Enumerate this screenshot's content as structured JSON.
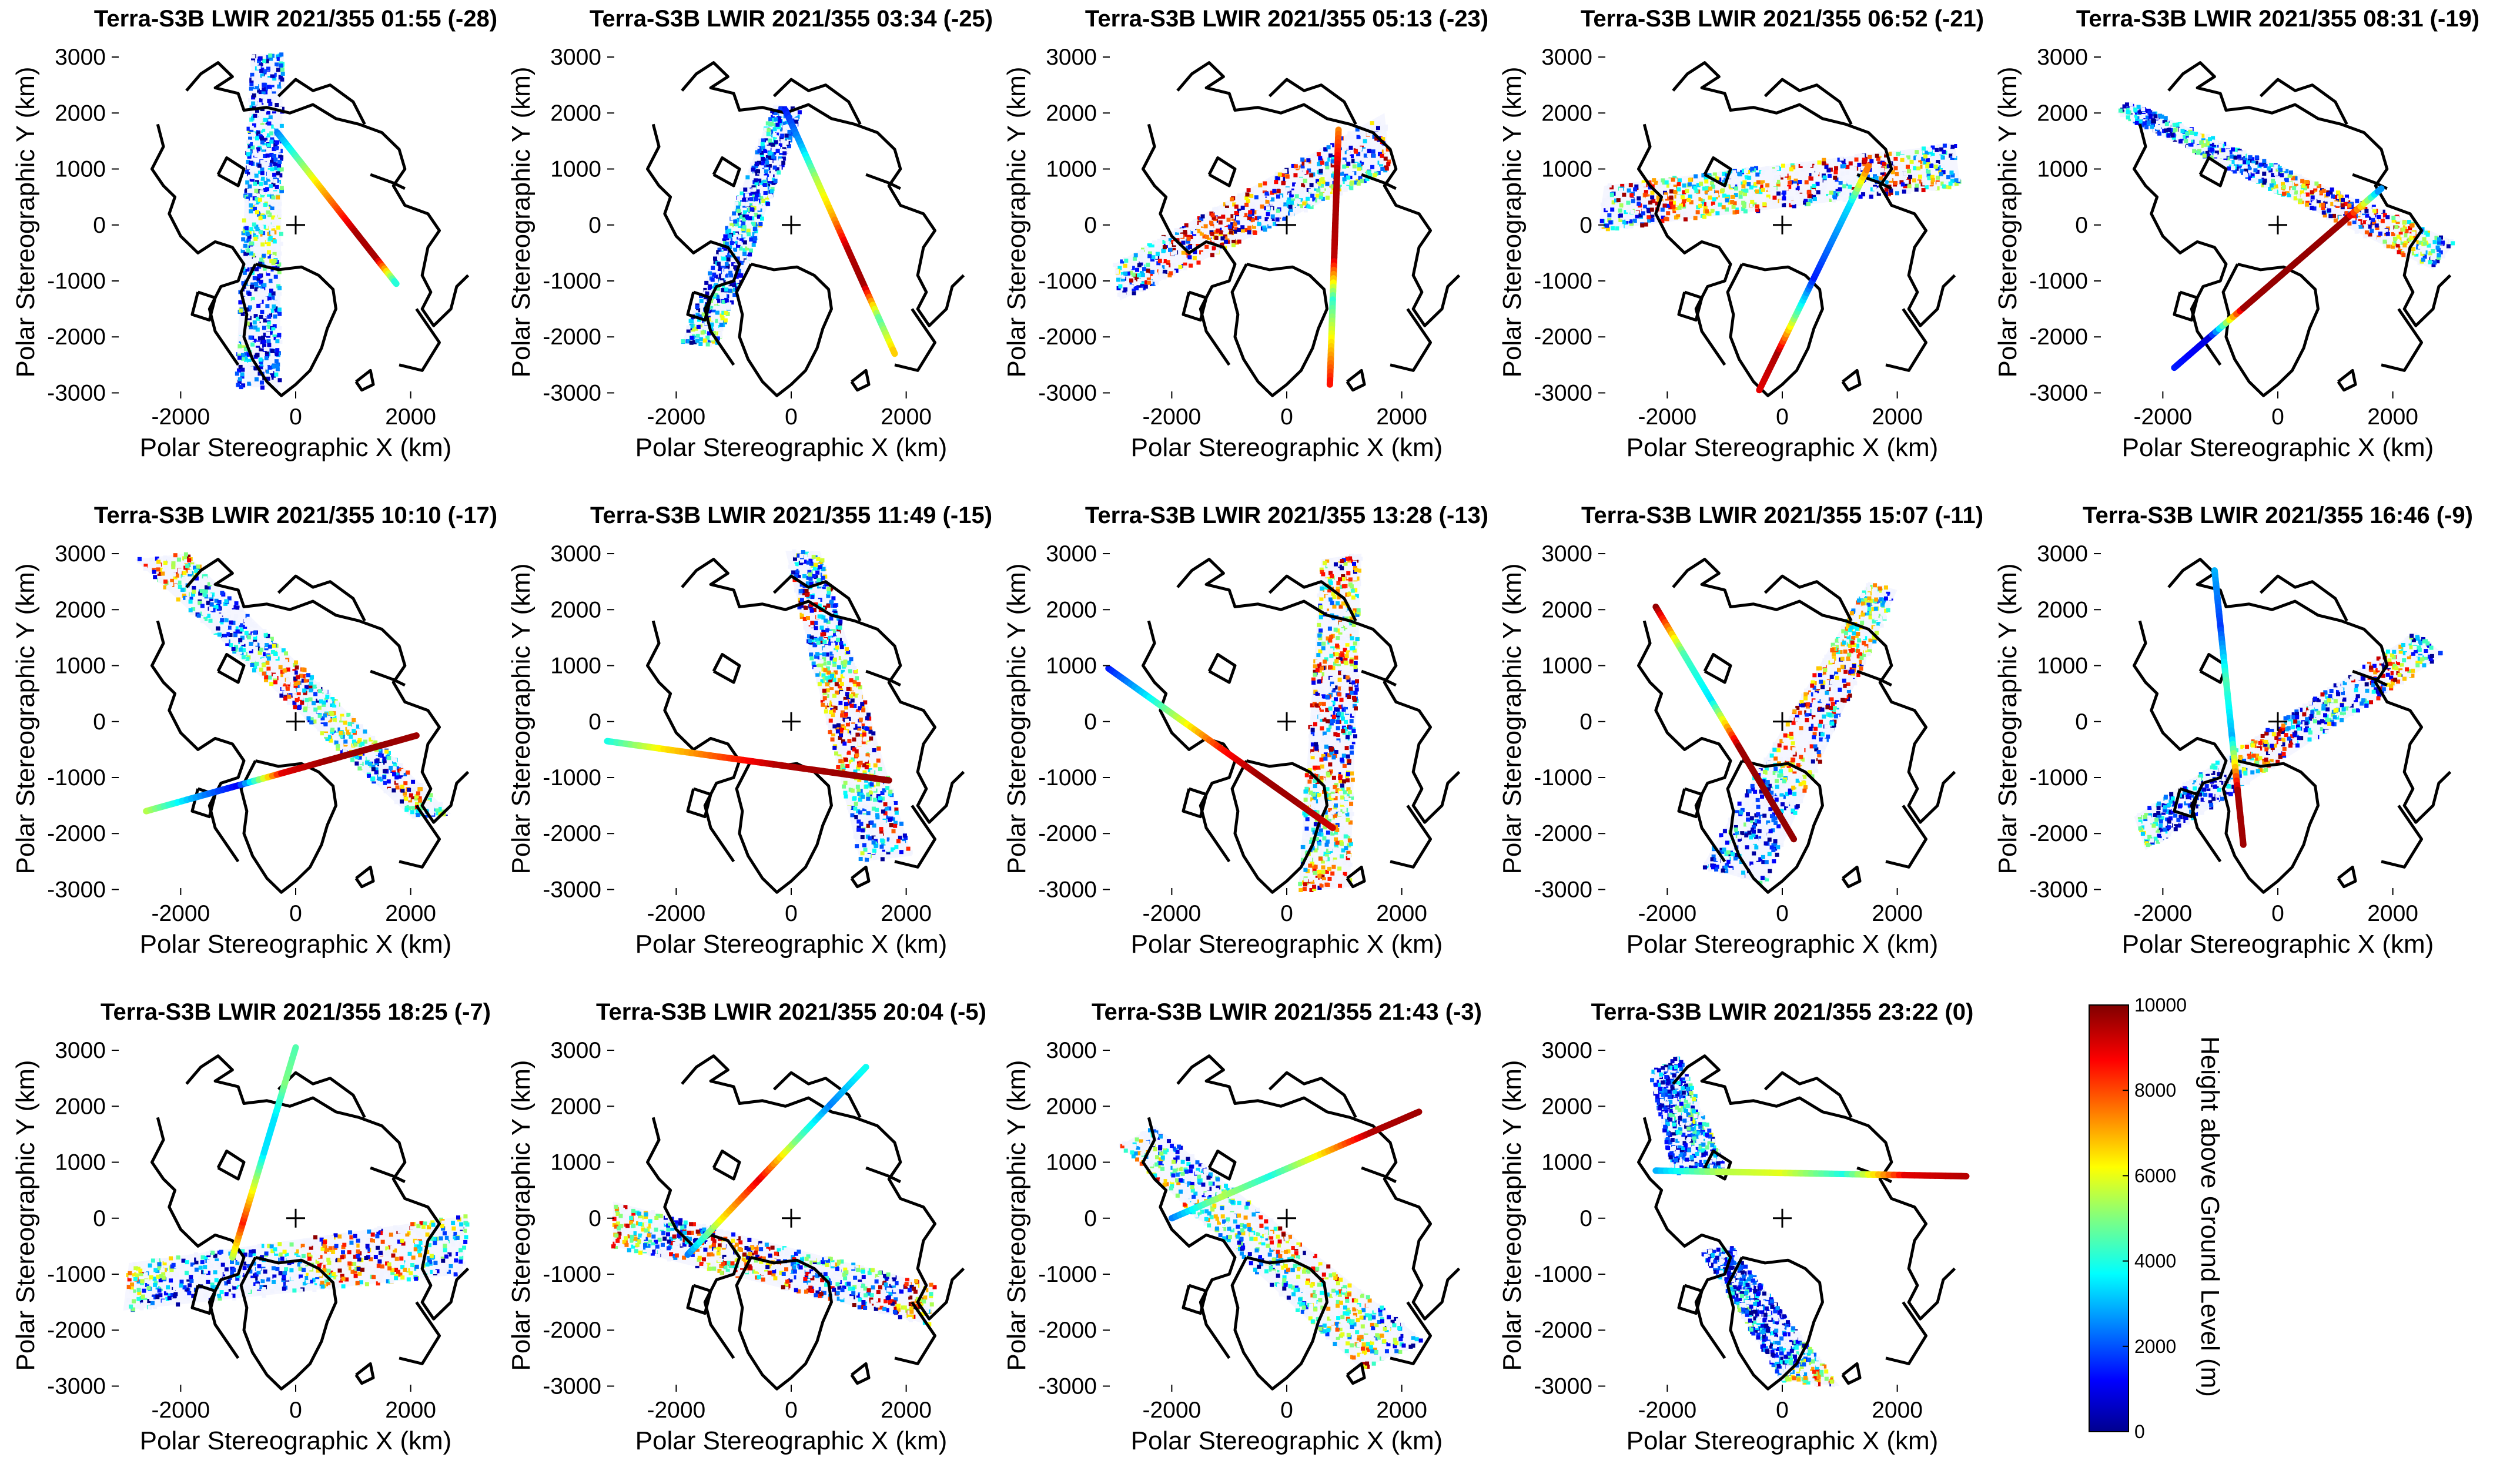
{
  "chart_data": {
    "type": "scatter",
    "xlabel": "Polar Stereographic X (km)",
    "ylabel": "Polar Stereographic Y (km)",
    "xticks": [
      -2000,
      0,
      2000
    ],
    "yticks": [
      3000,
      2000,
      1000,
      0,
      -1000,
      -2000,
      -3000
    ],
    "xlim": [
      -3200,
      3200
    ],
    "ylim": [
      -3100,
      3200
    ],
    "colorbar": {
      "label": "Height above Ground Level (m)",
      "min": 0,
      "max": 10000,
      "ticks": [
        10000,
        8000,
        6000,
        4000,
        2000,
        0
      ],
      "colormap": "jet"
    },
    "panels": [
      {
        "title": "Terra-S3B LWIR 2021/355 01:55 (-28)",
        "swath": [
          [
            -760,
            3050
          ],
          [
            -220,
            3050
          ],
          [
            -280,
            -2900
          ],
          [
            -1050,
            -2900
          ]
        ],
        "track": [
          [
            -320,
            1650
          ],
          [
            1750,
            -1050
          ]
        ],
        "trackValues": [
          2500,
          4500,
          6500,
          8000,
          9600,
          9600,
          3500
        ]
      },
      {
        "title": "Terra-S3B LWIR 2021/355 03:34 (-25)",
        "swath": [
          [
            -300,
            2150
          ],
          [
            200,
            2050
          ],
          [
            -1300,
            -2150
          ],
          [
            -1900,
            -2100
          ]
        ],
        "track": [
          [
            -100,
            2050
          ],
          [
            1800,
            -2300
          ]
        ],
        "trackValues": [
          1500,
          3000,
          5500,
          7000,
          9500,
          9700,
          4500,
          7000
        ]
      },
      {
        "title": "Terra-S3B LWIR 2021/355 05:13 (-23)",
        "swath": [
          [
            -3000,
            -700
          ],
          [
            1700,
            2000
          ],
          [
            1800,
            1000
          ],
          [
            -2900,
            -1350
          ]
        ],
        "track": [
          [
            900,
            1700
          ],
          [
            750,
            -2850
          ]
        ],
        "trackValues": [
          7500,
          9500,
          9600,
          9400,
          4200,
          6500,
          8800
        ]
      },
      {
        "title": "Terra-S3B LWIR 2021/355 06:52 (-21)",
        "swath": [
          [
            -3100,
            700
          ],
          [
            3000,
            1450
          ],
          [
            3100,
            700
          ],
          [
            -3200,
            -100
          ]
        ],
        "track": [
          [
            -400,
            -2950
          ],
          [
            1500,
            1050
          ]
        ],
        "trackValues": [
          9000,
          9600,
          4800,
          1500,
          2500,
          3500,
          8000
        ]
      },
      {
        "title": "Terra-S3B LWIR 2021/355 08:31 (-19)",
        "swath": [
          [
            -2800,
            2000
          ],
          [
            -2600,
            2200
          ],
          [
            3100,
            -300
          ],
          [
            2700,
            -800
          ]
        ],
        "track": [
          [
            -1800,
            -2550
          ],
          [
            1800,
            650
          ]
        ],
        "trackValues": [
          1500,
          900,
          9700,
          9800,
          9800,
          9700,
          2000
        ]
      },
      {
        "title": "Terra-S3B LWIR 2021/355 10:10 (-17)",
        "swath": [
          [
            -2800,
            2900
          ],
          [
            -1900,
            3000
          ],
          [
            2700,
            -1650
          ],
          [
            2000,
            -1700
          ]
        ],
        "track": [
          [
            -2600,
            -1600
          ],
          [
            2100,
            -250
          ]
        ],
        "trackValues": [
          5500,
          3000,
          1200,
          9000,
          9700,
          9800,
          9700
        ]
      },
      {
        "title": "Terra-S3B LWIR 2021/355 11:49 (-15)",
        "swath": [
          [
            -100,
            3050
          ],
          [
            500,
            3050
          ],
          [
            2100,
            -2400
          ],
          [
            1200,
            -2500
          ]
        ],
        "track": [
          [
            -3200,
            -350
          ],
          [
            1700,
            -1050
          ]
        ],
        "trackValues": [
          4000,
          6500,
          8000,
          9500,
          9700,
          9800
        ]
      },
      {
        "title": "Terra-S3B LWIR 2021/355 13:28 (-13)",
        "swath": [
          [
            600,
            2900
          ],
          [
            1300,
            3000
          ],
          [
            1100,
            -2950
          ],
          [
            200,
            -3050
          ]
        ],
        "track": [
          [
            -3100,
            950
          ],
          [
            800,
            -1900
          ]
        ],
        "trackValues": [
          1500,
          3500,
          6000,
          8500,
          9700,
          9700,
          9200
        ]
      },
      {
        "title": "Terra-S3B LWIR 2021/355 15:07 (-11)",
        "swath": [
          [
            1500,
            2500
          ],
          [
            2000,
            2350
          ],
          [
            -300,
            -2900
          ],
          [
            -1400,
            -2600
          ]
        ],
        "track": [
          [
            -2200,
            2050
          ],
          [
            200,
            -2100
          ]
        ],
        "trackValues": [
          9800,
          4500,
          3500,
          9700,
          9800,
          9800
        ]
      },
      {
        "title": "Terra-S3B LWIR 2021/355 16:46 (-9)",
        "swath": [
          [
            2400,
            1600
          ],
          [
            2900,
            1200
          ],
          [
            -2300,
            -2300
          ],
          [
            -2500,
            -1700
          ]
        ],
        "track": [
          [
            -1100,
            2700
          ],
          [
            -600,
            -2200
          ]
        ],
        "trackValues": [
          3000,
          1800,
          4500,
          3000,
          9600,
          9700
        ]
      },
      {
        "title": "Terra-S3B LWIR 2021/355 18:25 (-7)",
        "swath": [
          [
            -2900,
            -800
          ],
          [
            3000,
            50
          ],
          [
            2900,
            -1000
          ],
          [
            -3000,
            -1650
          ]
        ],
        "track": [
          [
            -1100,
            -700
          ],
          [
            0,
            3050
          ]
        ],
        "trackValues": [
          5500,
          8500,
          6000,
          3500,
          3500,
          5000,
          4500
        ]
      },
      {
        "title": "Terra-S3B LWIR 2021/355 20:04 (-5)",
        "swath": [
          [
            -3100,
            300
          ],
          [
            2500,
            -1200
          ],
          [
            2400,
            -1900
          ],
          [
            -3100,
            -500
          ]
        ],
        "track": [
          [
            -1800,
            -650
          ],
          [
            1300,
            2700
          ]
        ],
        "trackValues": [
          2500,
          6500,
          9000,
          5000,
          2500,
          4000
        ]
      },
      {
        "title": "Terra-S3B LWIR 2021/355 21:43 (-3)",
        "swath": [
          [
            -2900,
            1300
          ],
          [
            -2300,
            1650
          ],
          [
            2400,
            -2200
          ],
          [
            1300,
            -2700
          ]
        ],
        "track": [
          [
            -2000,
            0
          ],
          [
            2300,
            1900
          ]
        ],
        "trackValues": [
          2500,
          5500,
          4000,
          6500,
          9500,
          9700
        ]
      },
      {
        "title": "Terra-S3B LWIR 2021/355 23:22 (0)",
        "swath": [
          [
            -1400,
            -600
          ],
          [
            -900,
            -500
          ],
          [
            1000,
            -3000
          ],
          [
            0,
            -2900
          ]
        ],
        "swath2": [
          [
            -2300,
            2600
          ],
          [
            -1800,
            2900
          ],
          [
            -1000,
            900
          ],
          [
            -1900,
            800
          ]
        ],
        "track": [
          [
            -2200,
            850
          ],
          [
            3200,
            750
          ]
        ],
        "trackValues": [
          3000,
          5500,
          6000,
          4000,
          9000,
          9500
        ]
      }
    ]
  }
}
